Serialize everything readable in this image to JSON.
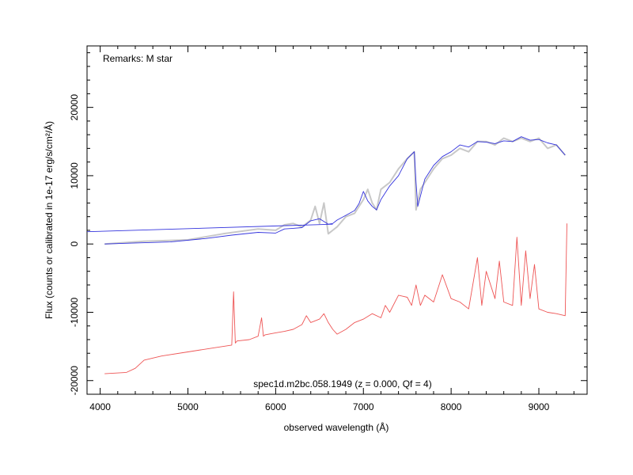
{
  "chart_data": {
    "type": "line",
    "xlabel": "observed wavelength (Å)",
    "ylabel": "Flux (counts or calibrated in 1e-17 erg/s/cm²/Å)",
    "xlim": [
      3850,
      9550
    ],
    "ylim": [
      -22000,
      29000
    ],
    "x_ticks": [
      4000,
      5000,
      6000,
      7000,
      8000,
      9000
    ],
    "y_ticks": [
      -20000,
      -10000,
      0,
      10000,
      20000
    ],
    "x_tick_labels": [
      "4000",
      "5000",
      "6000",
      "7000",
      "8000",
      "9000"
    ],
    "y_tick_labels": [
      "-20000",
      "-10000",
      "0",
      "10000",
      "20000"
    ],
    "grid": false,
    "annotations": {
      "remarks": "Remarks: M star",
      "object": "spec1d.m2bc.058.1949 (z = 0.000, Qf = 4)"
    },
    "series": [
      {
        "color": "#c8c8c8",
        "x": [
          4050,
          4500,
          5000,
          5400,
          5800,
          6000,
          6100,
          6200,
          6300,
          6400,
          6450,
          6500,
          6550,
          6600,
          6650,
          6700,
          6800,
          6900,
          6950,
          7000,
          7050,
          7100,
          7150,
          7200,
          7300,
          7400,
          7500,
          7580,
          7600,
          7650,
          7700,
          7800,
          7900,
          8000,
          8100,
          8200,
          8300,
          8400,
          8500,
          8600,
          8700,
          8800,
          8900,
          9000,
          9100,
          9200,
          9300
        ],
        "y": [
          0,
          400,
          600,
          1500,
          2200,
          2000,
          2800,
          3000,
          2500,
          3500,
          5500,
          3000,
          6000,
          1500,
          2000,
          2500,
          4000,
          4500,
          5500,
          6500,
          8000,
          6000,
          5000,
          8000,
          9000,
          11000,
          12500,
          13500,
          5000,
          8000,
          9000,
          11000,
          12500,
          13000,
          14000,
          13500,
          15000,
          15000,
          14500,
          15500,
          15000,
          15500,
          15000,
          15500,
          14000,
          14500,
          13000
        ]
      },
      {
        "color": "#3333dd",
        "x": [
          4050,
          4400,
          4800,
          5200,
          5500,
          5800,
          6000,
          6100,
          6200,
          6300,
          6400,
          6500,
          6600,
          6650,
          6700,
          6800,
          6900,
          6950,
          7000,
          7050,
          7100,
          7150,
          7200,
          7300,
          7400,
          7500,
          7580,
          7600,
          7620,
          7700,
          7800,
          7900,
          8000,
          8100,
          8200,
          8300,
          8400,
          8500,
          8600,
          8700,
          8800,
          8900,
          9000,
          9100,
          9200,
          9300
        ],
        "y": [
          0,
          150,
          300,
          800,
          1300,
          1700,
          1600,
          2200,
          2300,
          2400,
          3400,
          3700,
          2900,
          3000,
          3500,
          4200,
          4900,
          5900,
          7700,
          6300,
          5500,
          5000,
          6500,
          8500,
          10000,
          12500,
          13500,
          9000,
          5500,
          9500,
          11500,
          12800,
          13500,
          14500,
          14200,
          15000,
          14900,
          14700,
          15100,
          15000,
          15700,
          15200,
          15300,
          14800,
          14500,
          13000
        ]
      },
      {
        "color": "#3333dd",
        "x": [
          3850,
          6650
        ],
        "y": [
          1800,
          2900
        ]
      },
      {
        "color": "#ee5555",
        "x": [
          4050,
          4300,
          4400,
          4500,
          4700,
          5000,
          5300,
          5500,
          5520,
          5540,
          5560,
          5700,
          5800,
          5840,
          5860,
          5880,
          6000,
          6100,
          6200,
          6300,
          6350,
          6400,
          6500,
          6550,
          6600,
          6650,
          6700,
          6800,
          6900,
          7000,
          7100,
          7200,
          7250,
          7300,
          7400,
          7500,
          7550,
          7600,
          7650,
          7700,
          7800,
          7900,
          8000,
          8100,
          8200,
          8300,
          8350,
          8400,
          8500,
          8550,
          8600,
          8700,
          8750,
          8800,
          8850,
          8900,
          8950,
          9000,
          9100,
          9200,
          9300,
          9320
        ],
        "y": [
          -19000,
          -18800,
          -18200,
          -17000,
          -16400,
          -15800,
          -15200,
          -14800,
          -7000,
          -14500,
          -14200,
          -14000,
          -13500,
          -10800,
          -13500,
          -13300,
          -13000,
          -12800,
          -12500,
          -11800,
          -10500,
          -11500,
          -11000,
          -10200,
          -11500,
          -12500,
          -13200,
          -12500,
          -11500,
          -11000,
          -10200,
          -10800,
          -9000,
          -10000,
          -7500,
          -7800,
          -9000,
          -6000,
          -9000,
          -7500,
          -8500,
          -4500,
          -8000,
          -8500,
          -9500,
          -2000,
          -9000,
          -4000,
          -8000,
          -2500,
          -8500,
          -9000,
          1000,
          -9000,
          -1000,
          -8000,
          -3000,
          -9500,
          -10000,
          -10200,
          -10500,
          3000
        ]
      }
    ]
  }
}
